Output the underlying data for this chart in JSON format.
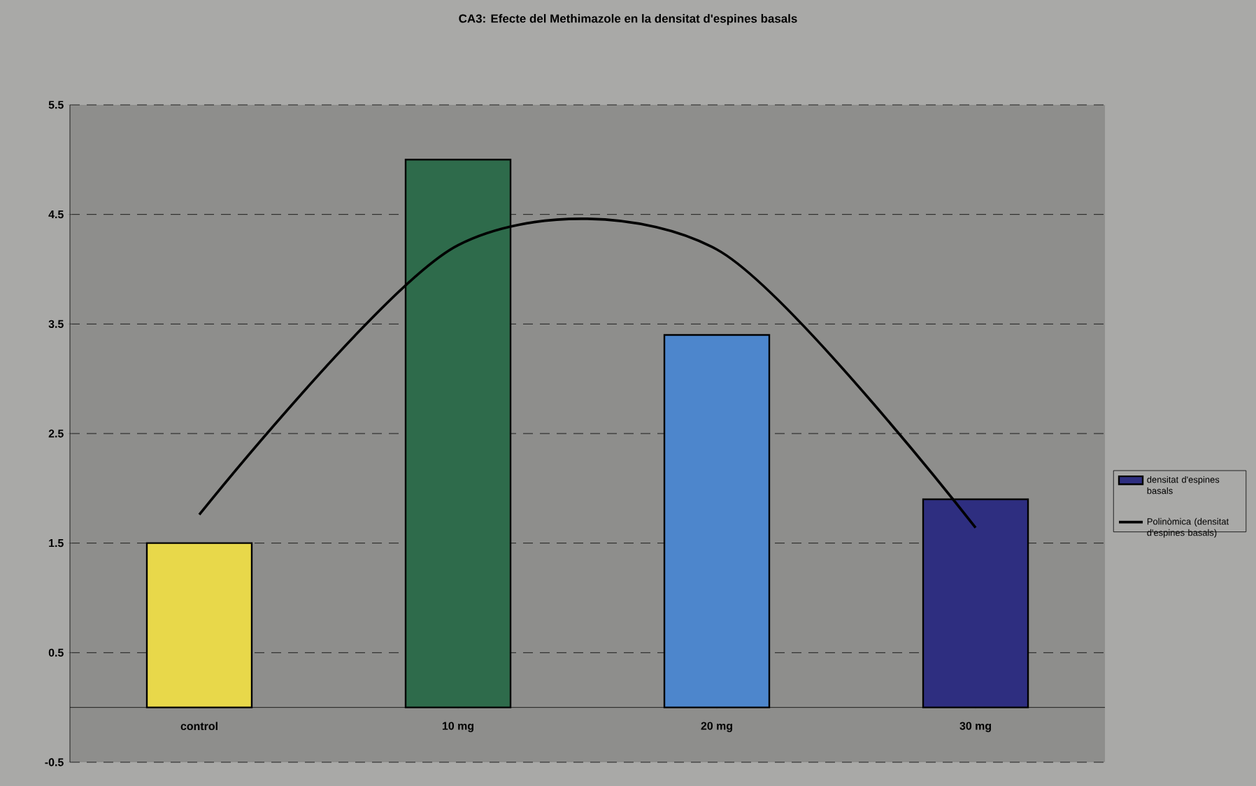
{
  "chart_data": {
    "type": "bar",
    "title": "CA3: Efecte del Methimazole en la densitat d'espines basals",
    "categories": [
      "control",
      "10 mg",
      "20 mg",
      "30 mg"
    ],
    "series": [
      {
        "name": "densitat d'espines basals",
        "colors": [
          "#e8d84a",
          "#2e6b4b",
          "#4d86cc",
          "#2e2e80"
        ],
        "values": [
          1.5,
          5.0,
          3.4,
          1.9
        ]
      },
      {
        "name": "Polinòmica (densitat d'espines basals)",
        "type": "line",
        "color": "#000000",
        "values": [
          1.76,
          4.22,
          4.18,
          1.64
        ]
      }
    ],
    "ylim": [
      -0.5,
      5.5
    ],
    "yticks": [
      -0.5,
      0.5,
      1.5,
      2.5,
      3.5,
      4.5,
      5.5
    ],
    "grid": "y",
    "legend": "right"
  }
}
